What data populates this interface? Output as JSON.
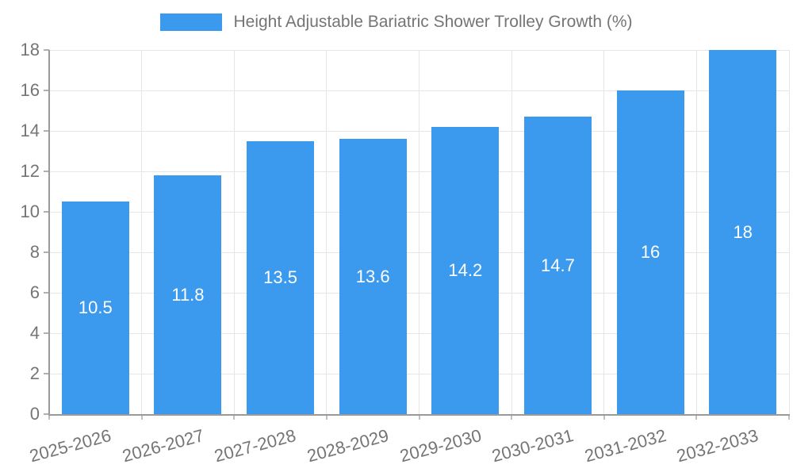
{
  "legend": {
    "label": "Height Adjustable Bariatric Shower Trolley Growth (%)"
  },
  "chart_data": {
    "type": "bar",
    "title": "Height Adjustable Bariatric Shower Trolley Growth (%)",
    "categories": [
      "2025-2026",
      "2026-2027",
      "2027-2028",
      "2028-2029",
      "2029-2030",
      "2030-2031",
      "2031-2032",
      "2032-2033"
    ],
    "values": [
      10.5,
      11.8,
      13.5,
      13.6,
      14.2,
      14.7,
      16,
      18
    ],
    "value_labels": [
      "10.5",
      "11.8",
      "13.5",
      "13.6",
      "14.2",
      "14.7",
      "16",
      "18"
    ],
    "xlabel": "",
    "ylabel": "",
    "ylim": [
      0,
      18
    ],
    "ytick_step": 2,
    "ytick_labels": [
      "0",
      "2",
      "4",
      "6",
      "8",
      "10",
      "12",
      "14",
      "16",
      "18"
    ],
    "grid": true,
    "legend_position": "top-center",
    "bar_color": "#3b99ee",
    "value_label_color": "#ffffff",
    "grid_color": "#e6e6e6",
    "axis_color": "#9a9a9a",
    "tick_label_color": "#757575"
  }
}
